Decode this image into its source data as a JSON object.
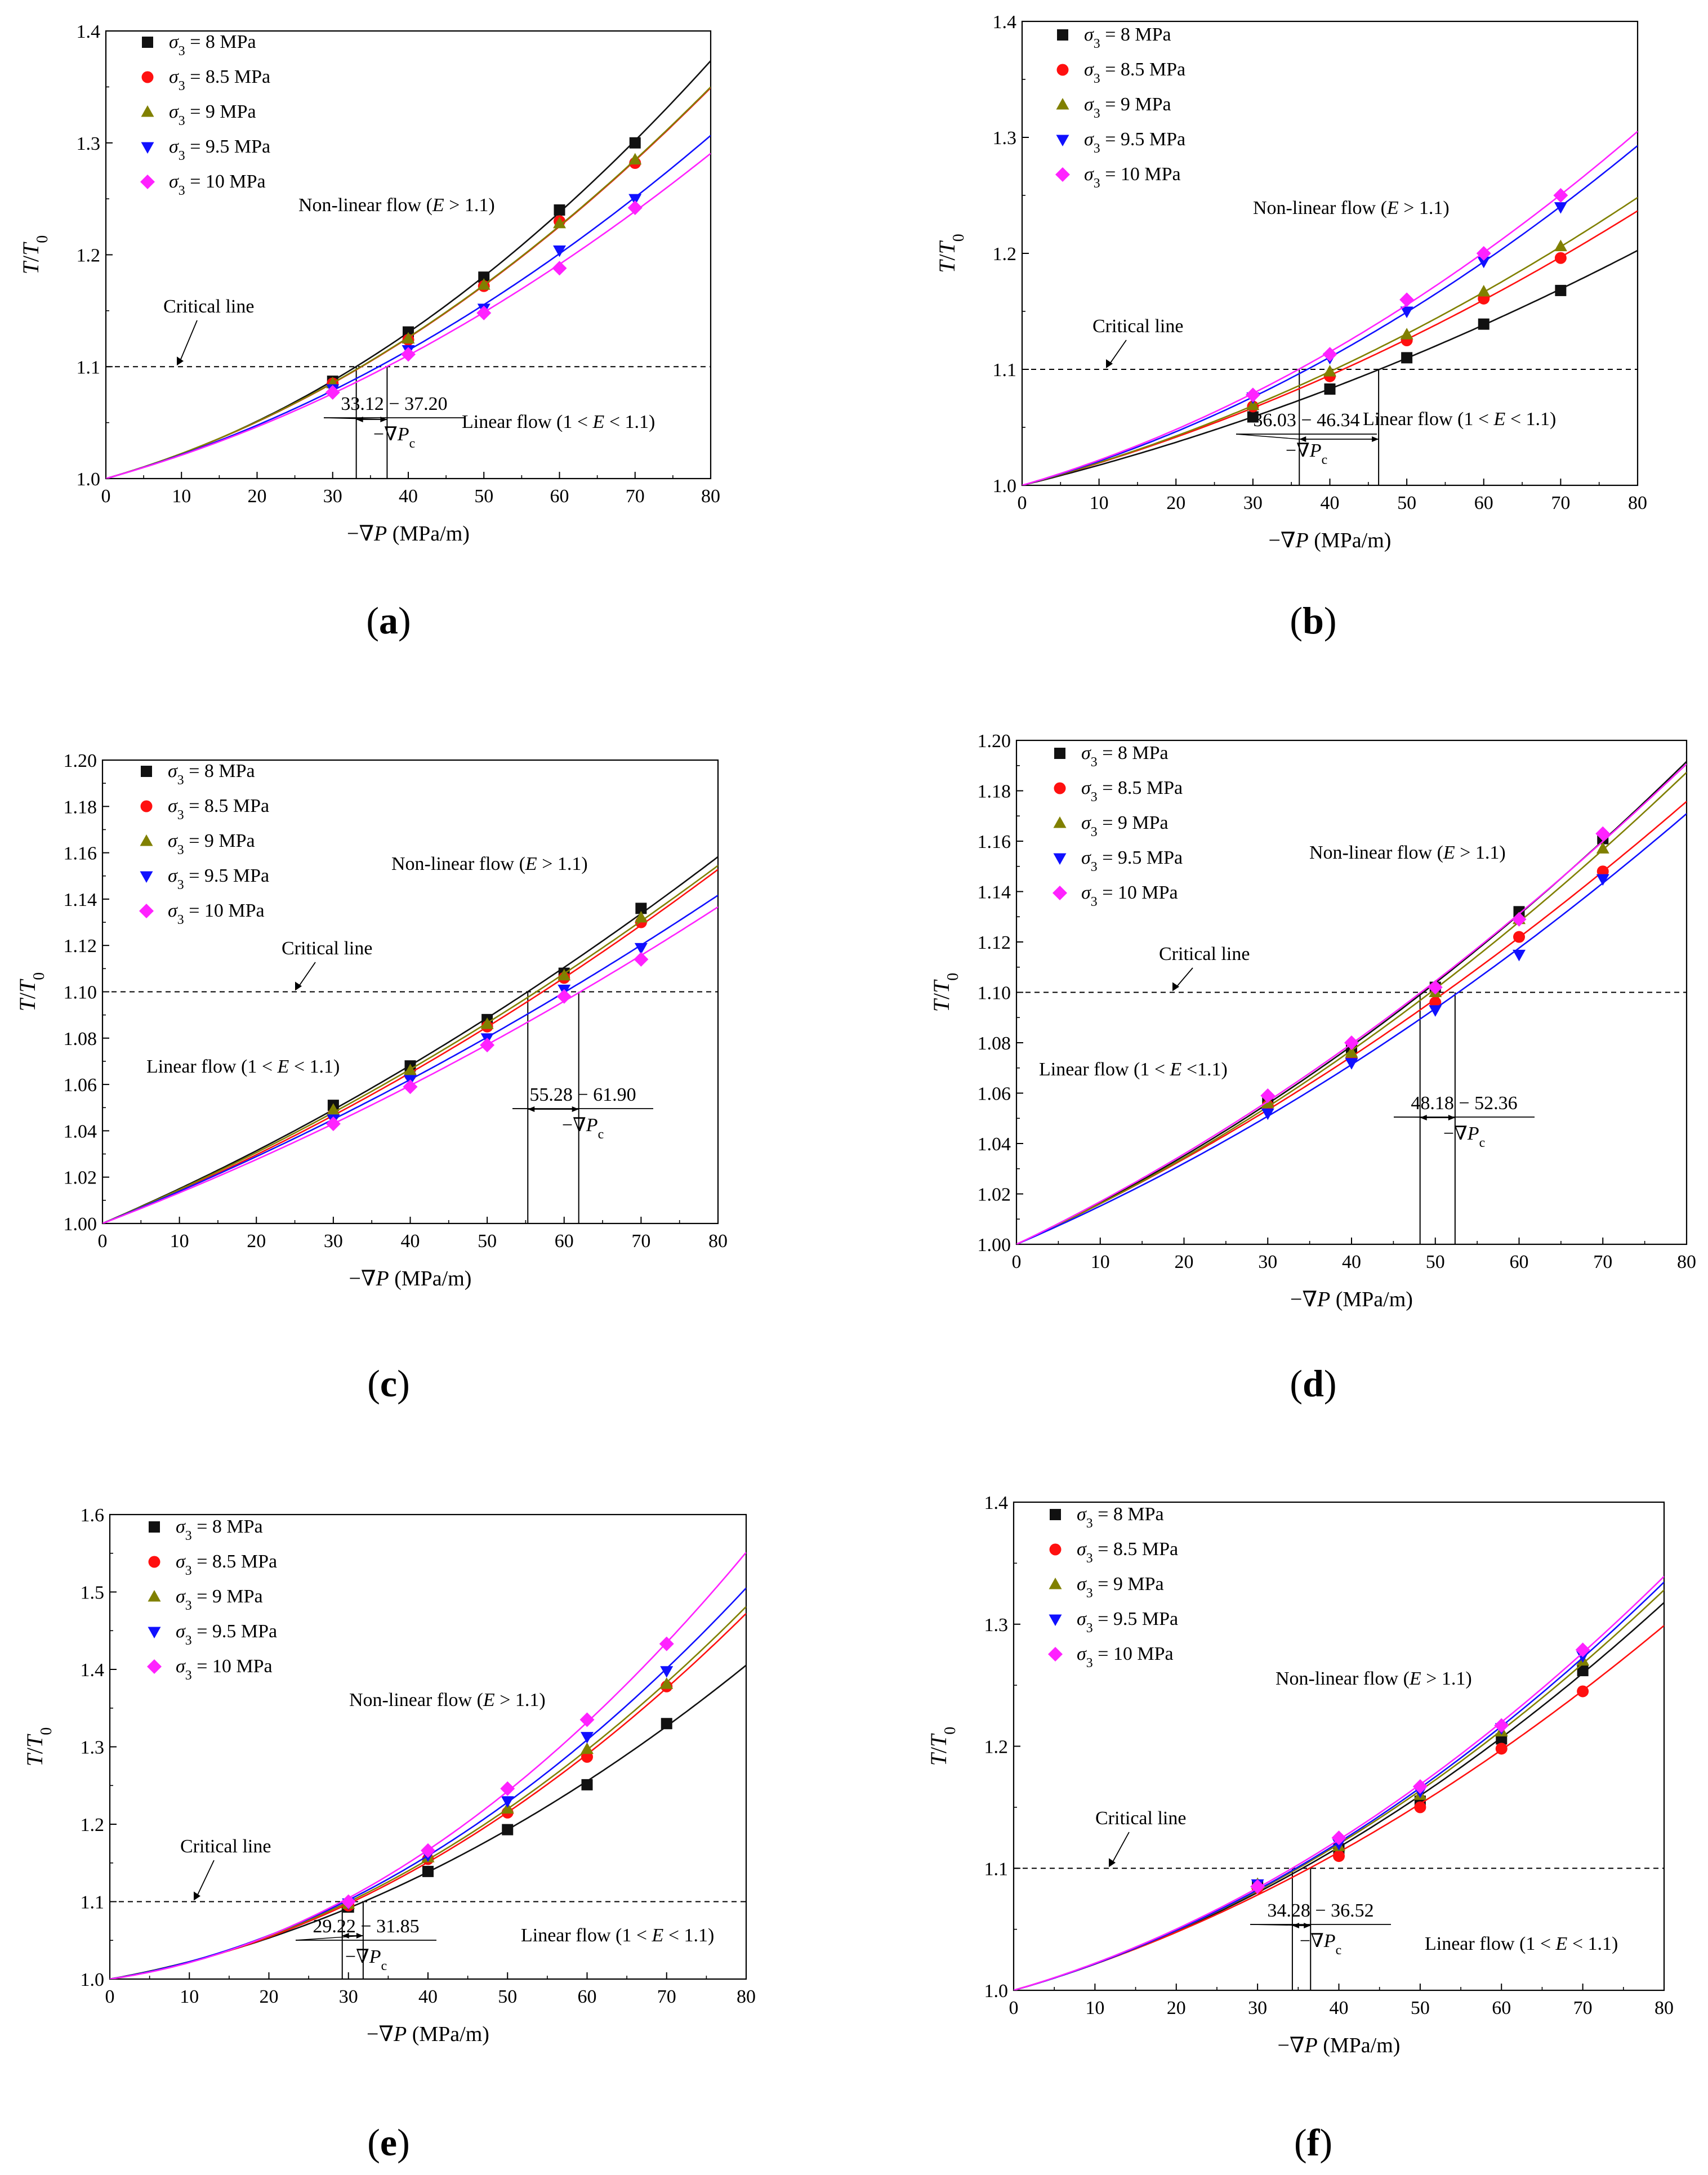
{
  "chart_data": [
    {
      "panel": "a",
      "caption": "(a)",
      "type": "scatter",
      "title": "",
      "xlabel": "−∇P (MPa/m)",
      "ylabel": "T/T0",
      "xlim": [
        0,
        80
      ],
      "ylim": [
        1.0,
        1.4
      ],
      "xticks": [
        0,
        10,
        20,
        30,
        40,
        50,
        60,
        70,
        80
      ],
      "yticks": [
        1.0,
        1.1,
        1.2,
        1.3,
        1.4
      ],
      "ytick_decimals": 1,
      "x": [
        30,
        40,
        50,
        60,
        70
      ],
      "series": [
        {
          "name": "σ3 = 8 MPa",
          "values": [
            1.087,
            1.131,
            1.18,
            1.24,
            1.3
          ],
          "fit_end": 1.374
        },
        {
          "name": "σ3 = 8.5 MPa",
          "values": [
            1.085,
            1.124,
            1.172,
            1.23,
            1.282
          ],
          "fit_end": 1.349
        },
        {
          "name": "σ3 = 9 MPa",
          "values": [
            1.085,
            1.125,
            1.173,
            1.228,
            1.285
          ],
          "fit_end": 1.349
        },
        {
          "name": "σ3 = 9.5 MPa",
          "values": [
            1.08,
            1.115,
            1.152,
            1.204,
            1.25
          ],
          "fit_end": 1.307
        },
        {
          "name": "σ3 = 10 MPa",
          "values": [
            1.077,
            1.111,
            1.148,
            1.188,
            1.242
          ],
          "fit_end": 1.29
        }
      ],
      "critical_value": 1.1,
      "critical_label": "Critical line",
      "critical_range": [
        33.12,
        37.2
      ],
      "range_text": "33.12 − 37.20",
      "range_sub": "−∇Pc",
      "nonlinear_label": "Non-linear flow (E > 1.1)",
      "linear_label": "Linear flow (1 < E < 1.1)"
    },
    {
      "panel": "b",
      "caption": "(b)",
      "type": "scatter",
      "title": "",
      "xlabel": "−∇P (MPa/m)",
      "ylabel": "T/T0",
      "xlim": [
        0,
        80
      ],
      "ylim": [
        1.0,
        1.4
      ],
      "xticks": [
        0,
        10,
        20,
        30,
        40,
        50,
        60,
        70,
        80
      ],
      "yticks": [
        1.0,
        1.1,
        1.2,
        1.3,
        1.4
      ],
      "ytick_decimals": 1,
      "x": [
        30,
        40,
        50,
        60,
        70
      ],
      "series": [
        {
          "name": "σ3 = 8 MPa",
          "values": [
            1.059,
            1.083,
            1.11,
            1.139,
            1.168
          ],
          "fit_end": 1.203
        },
        {
          "name": "σ3 = 8.5 MPa",
          "values": [
            1.068,
            1.094,
            1.125,
            1.161,
            1.196
          ],
          "fit_end": 1.237
        },
        {
          "name": "σ3 = 9 MPa",
          "values": [
            1.069,
            1.098,
            1.13,
            1.167,
            1.206
          ],
          "fit_end": 1.248
        },
        {
          "name": "σ3 = 9.5 MPa",
          "values": [
            1.076,
            1.11,
            1.15,
            1.193,
            1.24
          ],
          "fit_end": 1.293
        },
        {
          "name": "σ3 = 10 MPa",
          "values": [
            1.078,
            1.113,
            1.16,
            1.2,
            1.25
          ],
          "fit_end": 1.305
        }
      ],
      "critical_value": 1.1,
      "critical_label": "Critical line",
      "critical_range": [
        36.03,
        46.34
      ],
      "range_text": "36.03 − 46.34",
      "range_sub": "−∇Pc",
      "nonlinear_label": "Non-linear flow (E > 1.1)",
      "linear_label": "Linear flow (1 < E < 1.1)"
    },
    {
      "panel": "c",
      "caption": "(c)",
      "type": "scatter",
      "title": "",
      "xlabel": "−∇P (MPa/m)",
      "ylabel": "T/T0",
      "xlim": [
        0,
        80
      ],
      "ylim": [
        1.0,
        1.2
      ],
      "xticks": [
        0,
        10,
        20,
        30,
        40,
        50,
        60,
        70,
        80
      ],
      "yticks": [
        1.0,
        1.02,
        1.04,
        1.06,
        1.08,
        1.1,
        1.12,
        1.14,
        1.16,
        1.18,
        1.2
      ],
      "ytick_decimals": 2,
      "x": [
        30,
        40,
        50,
        60,
        70
      ],
      "series": [
        {
          "name": "σ3 = 8 MPa",
          "values": [
            1.051,
            1.068,
            1.088,
            1.108,
            1.136
          ],
          "fit_end": 1.158
        },
        {
          "name": "σ3 = 8.5 MPa",
          "values": [
            1.047,
            1.064,
            1.085,
            1.106,
            1.13
          ],
          "fit_end": 1.152
        },
        {
          "name": "σ3 = 9 MPa",
          "values": [
            1.049,
            1.066,
            1.086,
            1.107,
            1.132
          ],
          "fit_end": 1.154
        },
        {
          "name": "σ3 = 9.5 MPa",
          "values": [
            1.045,
            1.062,
            1.08,
            1.101,
            1.119
          ],
          "fit_end": 1.142
        },
        {
          "name": "σ3 = 10 MPa",
          "values": [
            1.043,
            1.059,
            1.077,
            1.098,
            1.114
          ],
          "fit_end": 1.137
        }
      ],
      "critical_value": 1.1,
      "critical_label": "Critical line",
      "critical_range": [
        55.28,
        61.9
      ],
      "range_text": "55.28 − 61.90",
      "range_sub": "−∇Pc",
      "nonlinear_label": "Non-linear flow (E > 1.1)",
      "linear_label": "Linear flow (1 < E < 1.1)"
    },
    {
      "panel": "d",
      "caption": "(d)",
      "type": "scatter",
      "title": "",
      "xlabel": "−∇P (MPa/m)",
      "ylabel": "T/T0",
      "xlim": [
        0,
        80
      ],
      "ylim": [
        1.0,
        1.2
      ],
      "xticks": [
        0,
        10,
        20,
        30,
        40,
        50,
        60,
        70,
        80
      ],
      "yticks": [
        1.0,
        1.02,
        1.04,
        1.06,
        1.08,
        1.1,
        1.12,
        1.14,
        1.16,
        1.18,
        1.2
      ],
      "ytick_decimals": 2,
      "x": [
        30,
        40,
        50,
        60,
        70
      ],
      "series": [
        {
          "name": "σ3 = 8 MPa",
          "values": [
            1.057,
            1.078,
            1.102,
            1.132,
            1.161
          ],
          "fit_end": 1.191
        },
        {
          "name": "σ3 = 8.5 MPa",
          "values": [
            1.055,
            1.074,
            1.096,
            1.122,
            1.148
          ],
          "fit_end": 1.176
        },
        {
          "name": "σ3 = 9 MPa",
          "values": [
            1.056,
            1.076,
            1.1,
            1.129,
            1.157
          ],
          "fit_end": 1.187
        },
        {
          "name": "σ3 = 9.5 MPa",
          "values": [
            1.052,
            1.072,
            1.093,
            1.115,
            1.145
          ],
          "fit_end": 1.171
        },
        {
          "name": "σ3 = 10 MPa",
          "values": [
            1.059,
            1.08,
            1.102,
            1.129,
            1.163
          ],
          "fit_end": 1.19
        }
      ],
      "critical_value": 1.1,
      "critical_label": "Critical line",
      "critical_range": [
        48.18,
        52.36
      ],
      "range_text": "48.18 − 52.36",
      "range_sub": "−∇Pc",
      "nonlinear_label": "Non-linear flow (E > 1.1)",
      "linear_label": "Linear flow (1 < E <1.1)"
    },
    {
      "panel": "e",
      "caption": "(e)",
      "type": "scatter",
      "title": "",
      "xlabel": "−∇P (MPa/m)",
      "ylabel": "T/T0",
      "xlim": [
        0,
        80
      ],
      "ylim": [
        1.0,
        1.6
      ],
      "xticks": [
        0,
        10,
        20,
        30,
        40,
        50,
        60,
        70,
        80
      ],
      "yticks": [
        1.0,
        1.1,
        1.2,
        1.3,
        1.4,
        1.5,
        1.6
      ],
      "ytick_decimals": 1,
      "x": [
        30,
        40,
        50,
        60,
        70
      ],
      "series": [
        {
          "name": "σ3 = 8 MPa",
          "values": [
            1.093,
            1.139,
            1.193,
            1.251,
            1.33
          ],
          "fit_end": 1.405
        },
        {
          "name": "σ3 = 8.5 MPa",
          "values": [
            1.095,
            1.155,
            1.215,
            1.287,
            1.378
          ],
          "fit_end": 1.472
        },
        {
          "name": "σ3 = 9 MPa",
          "values": [
            1.097,
            1.157,
            1.22,
            1.297,
            1.381
          ],
          "fit_end": 1.482
        },
        {
          "name": "σ3 = 9.5 MPa",
          "values": [
            1.098,
            1.16,
            1.23,
            1.313,
            1.398
          ],
          "fit_end": 1.505
        },
        {
          "name": "σ3 = 10 MPa",
          "values": [
            1.1,
            1.166,
            1.246,
            1.335,
            1.433
          ],
          "fit_end": 1.55
        }
      ],
      "critical_value": 1.1,
      "critical_label": "Critical line",
      "critical_range": [
        29.22,
        31.85
      ],
      "range_text": "29.22 − 31.85",
      "range_sub": "−∇Pc",
      "nonlinear_label": "Non-linear flow (E > 1.1)",
      "linear_label": "Linear flow (1 < E < 1.1)"
    },
    {
      "panel": "f",
      "caption": "(f)",
      "type": "scatter",
      "title": "",
      "xlabel": "−∇P (MPa/m)",
      "ylabel": "T/T0",
      "xlim": [
        0,
        80
      ],
      "ylim": [
        1.0,
        1.4
      ],
      "xticks": [
        0,
        10,
        20,
        30,
        40,
        50,
        60,
        70,
        80
      ],
      "yticks": [
        1.0,
        1.1,
        1.2,
        1.3,
        1.4
      ],
      "ytick_decimals": 1,
      "x": [
        30,
        40,
        50,
        60,
        70
      ],
      "series": [
        {
          "name": "σ3 = 8 MPa",
          "values": [
            1.086,
            1.116,
            1.155,
            1.206,
            1.262
          ],
          "fit_end": 1.318
        },
        {
          "name": "σ3 = 8.5 MPa",
          "values": [
            1.084,
            1.11,
            1.15,
            1.198,
            1.245
          ],
          "fit_end": 1.3
        },
        {
          "name": "σ3 = 9 MPa",
          "values": [
            1.087,
            1.118,
            1.16,
            1.212,
            1.27
          ],
          "fit_end": 1.328
        },
        {
          "name": "σ3 = 9.5 MPa",
          "values": [
            1.087,
            1.12,
            1.163,
            1.215,
            1.274
          ],
          "fit_end": 1.335
        },
        {
          "name": "σ3 = 10 MPa",
          "values": [
            1.085,
            1.125,
            1.167,
            1.217,
            1.279
          ],
          "fit_end": 1.339
        }
      ],
      "critical_value": 1.1,
      "critical_label": "Critical line",
      "critical_range": [
        34.28,
        36.52
      ],
      "range_text": "34.28 − 36.52",
      "range_sub": "−∇Pc",
      "nonlinear_label": "Non-linear flow  (E > 1.1)",
      "linear_label": "Linear flow  (1 < E < 1.1)"
    }
  ],
  "series_colors": [
    "#111111",
    "#ff1010",
    "#808000",
    "#1010ff",
    "#ff22ff"
  ],
  "series_markers": [
    "square",
    "circle",
    "triangle-up",
    "triangle-down",
    "diamond"
  ]
}
